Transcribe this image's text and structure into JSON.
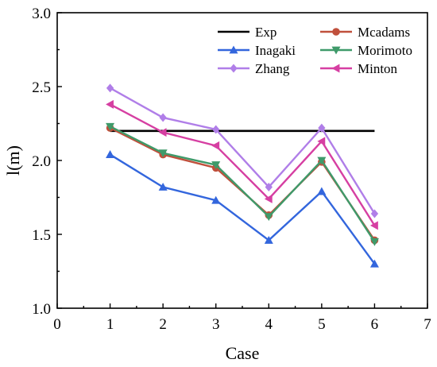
{
  "chart_data": {
    "type": "line",
    "xlabel": "Case",
    "ylabel": "l(m)",
    "xlim": [
      0,
      7
    ],
    "ylim": [
      1.0,
      3.0
    ],
    "xticks": [
      0,
      1,
      2,
      3,
      4,
      5,
      6,
      7
    ],
    "yticks": [
      1.0,
      1.5,
      2.0,
      2.5,
      3.0
    ],
    "xtick_labels": [
      "0",
      "1",
      "2",
      "3",
      "4",
      "5",
      "6",
      "7"
    ],
    "ytick_labels": [
      "1.0",
      "1.5",
      "2.0",
      "2.5",
      "3.0"
    ],
    "grid": false,
    "legend_position": "top-right",
    "legend_columns": 2,
    "series": [
      {
        "name": "Exp",
        "color": "#000000",
        "marker": "none",
        "x": [
          1,
          6
        ],
        "y": [
          2.2,
          2.2
        ]
      },
      {
        "name": "Inagaki",
        "color": "#3366dd",
        "marker": "triangle-up",
        "x": [
          1,
          2,
          3,
          4,
          5,
          6
        ],
        "y": [
          2.04,
          1.82,
          1.73,
          1.46,
          1.79,
          1.3
        ]
      },
      {
        "name": "Zhang",
        "color": "#b07ee8",
        "marker": "diamond",
        "x": [
          1,
          2,
          3,
          4,
          5,
          6
        ],
        "y": [
          2.49,
          2.29,
          2.21,
          1.82,
          2.22,
          1.64
        ]
      },
      {
        "name": "Mcadams",
        "color": "#c0503c",
        "marker": "circle",
        "x": [
          1,
          2,
          3,
          4,
          5,
          6
        ],
        "y": [
          2.22,
          2.04,
          1.95,
          1.63,
          1.99,
          1.46
        ]
      },
      {
        "name": "Morimoto",
        "color": "#3f9a6a",
        "marker": "triangle-down",
        "x": [
          1,
          2,
          3,
          4,
          5,
          6
        ],
        "y": [
          2.23,
          2.05,
          1.97,
          1.62,
          2.0,
          1.45
        ]
      },
      {
        "name": "Minton",
        "color": "#d63fa2",
        "marker": "triangle-left",
        "x": [
          1,
          2,
          3,
          4,
          5,
          6
        ],
        "y": [
          2.38,
          2.19,
          2.1,
          1.74,
          2.13,
          1.56
        ]
      }
    ]
  }
}
